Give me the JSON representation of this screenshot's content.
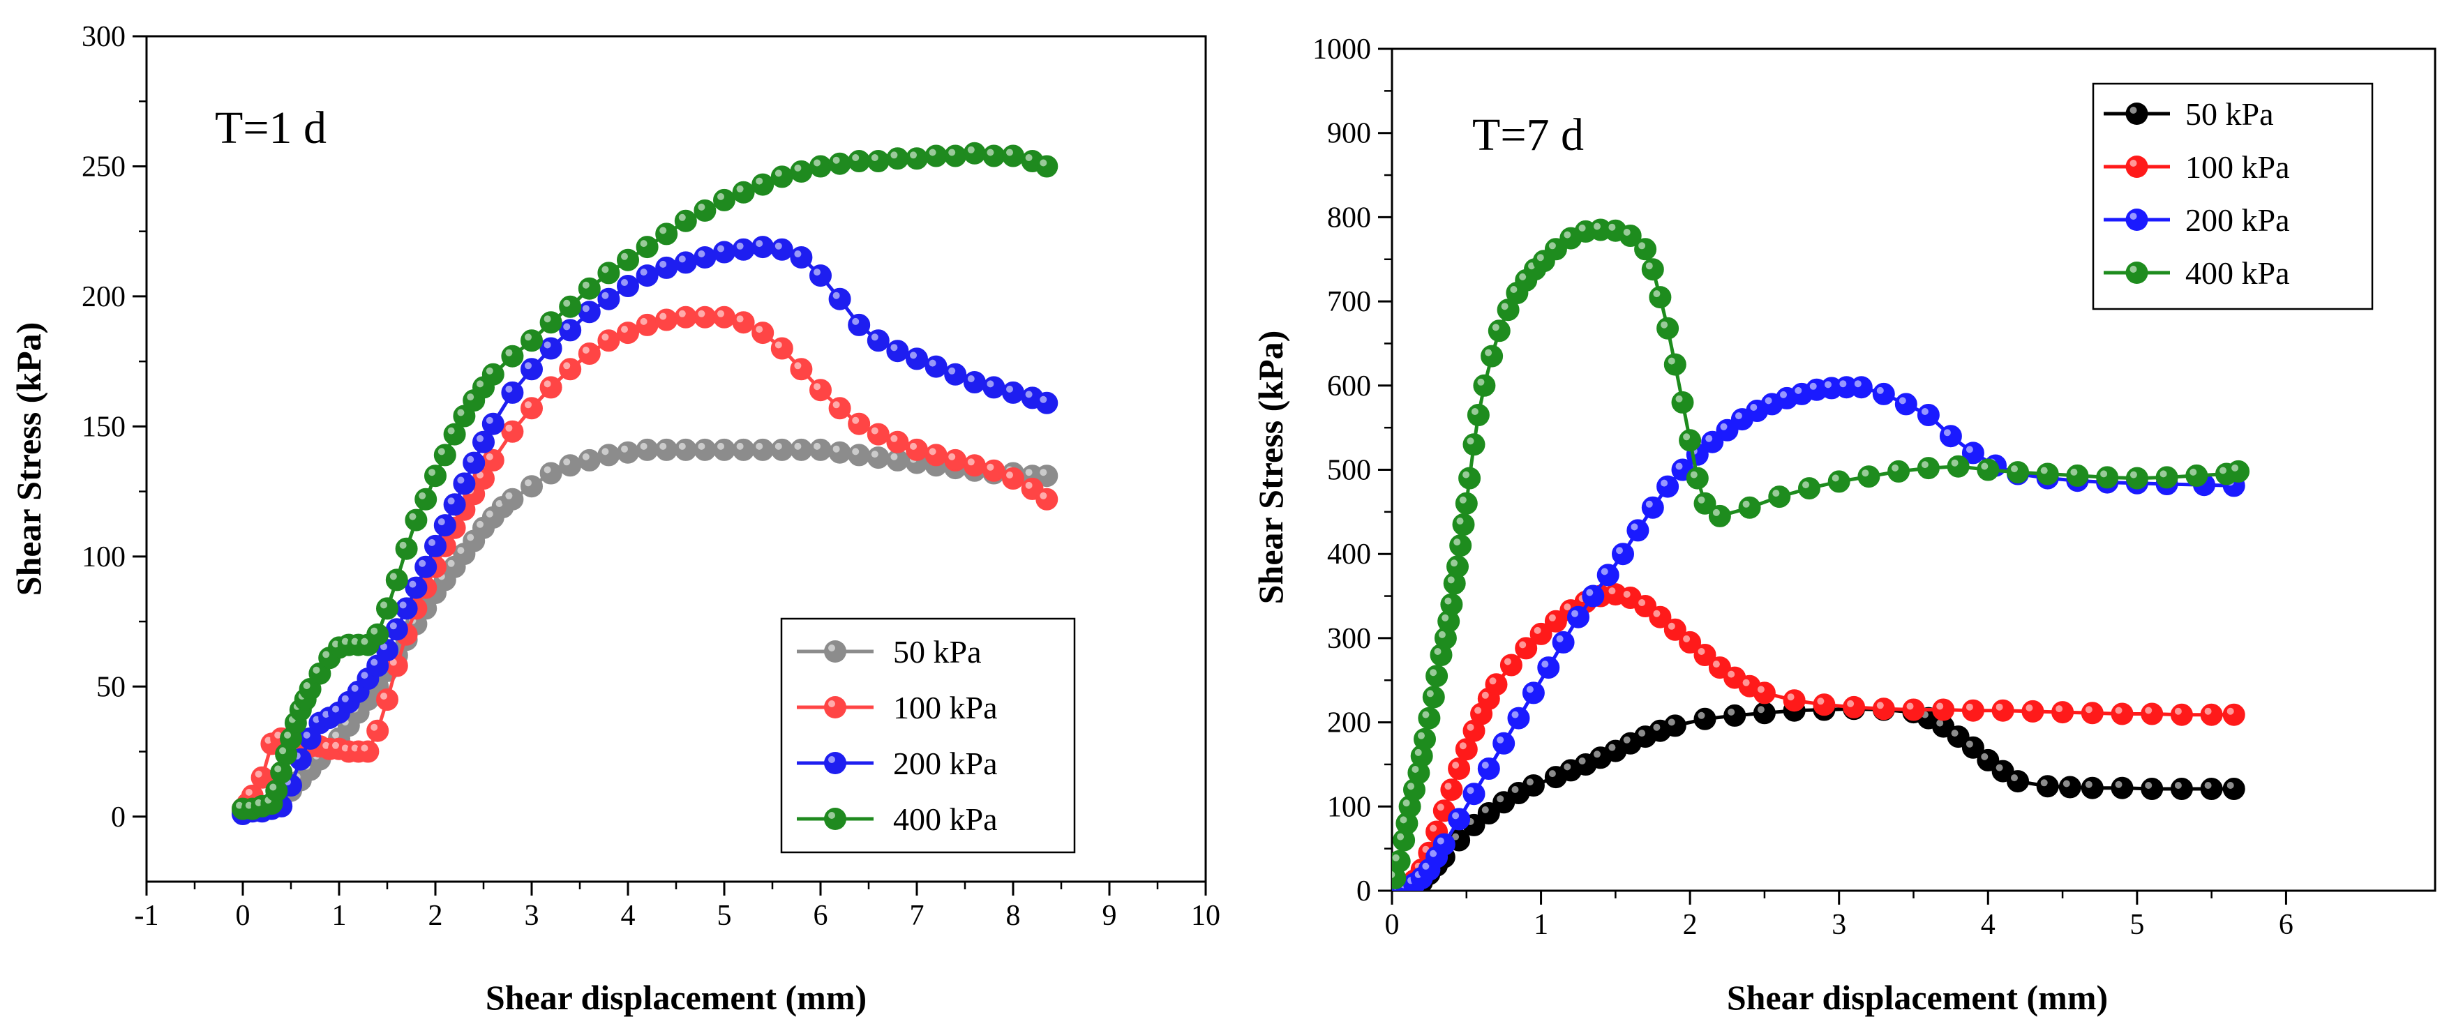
{
  "chart_data": [
    {
      "type": "line",
      "id": "left",
      "title": "T=1 d",
      "xlabel": "Shear displacement (mm)",
      "ylabel": "Shear Stress (kPa)",
      "xlim": [
        -1,
        10
      ],
      "ylim": [
        -25,
        300
      ],
      "xticks": [
        -1,
        0,
        1,
        2,
        3,
        4,
        5,
        6,
        7,
        8,
        9,
        10
      ],
      "yticks": [
        0,
        50,
        100,
        150,
        200,
        250,
        300
      ],
      "legend_position": "bottom-right",
      "series": [
        {
          "name": "50 kPa",
          "color": "#8c8c8c",
          "x": [
            0,
            0.1,
            0.2,
            0.3,
            0.4,
            0.5,
            0.6,
            0.7,
            0.8,
            0.9,
            1.0,
            1.1,
            1.2,
            1.3,
            1.4,
            1.5,
            1.6,
            1.7,
            1.8,
            1.9,
            2.0,
            2.1,
            2.2,
            2.3,
            2.4,
            2.5,
            2.6,
            2.7,
            2.8,
            3.0,
            3.2,
            3.4,
            3.6,
            3.8,
            4.0,
            4.2,
            4.4,
            4.6,
            4.8,
            5.0,
            5.2,
            5.4,
            5.6,
            5.8,
            6.0,
            6.2,
            6.4,
            6.6,
            6.8,
            7.0,
            7.2,
            7.4,
            7.6,
            7.8,
            8.0,
            8.2,
            8.35
          ],
          "y": [
            2,
            3,
            4,
            5,
            7,
            10,
            14,
            18,
            22,
            26,
            30,
            35,
            40,
            45,
            50,
            56,
            62,
            68,
            74,
            80,
            86,
            91,
            96,
            101,
            106,
            111,
            115,
            119,
            122,
            127,
            132,
            135,
            137,
            139,
            140,
            141,
            141,
            141,
            141,
            141,
            141,
            141,
            141,
            141,
            141,
            140,
            139,
            138,
            137,
            136,
            135,
            134,
            133,
            132,
            132,
            131,
            131
          ]
        },
        {
          "name": "100 kPa",
          "color": "#ff4545",
          "x": [
            0,
            0.05,
            0.1,
            0.2,
            0.3,
            0.4,
            0.5,
            0.6,
            0.7,
            0.8,
            0.9,
            1.0,
            1.1,
            1.2,
            1.3,
            1.4,
            1.5,
            1.6,
            1.7,
            1.8,
            1.9,
            2.0,
            2.1,
            2.2,
            2.3,
            2.4,
            2.5,
            2.6,
            2.8,
            3.0,
            3.2,
            3.4,
            3.6,
            3.8,
            4.0,
            4.2,
            4.4,
            4.6,
            4.8,
            5.0,
            5.2,
            5.4,
            5.6,
            5.8,
            6.0,
            6.2,
            6.4,
            6.6,
            6.8,
            7.0,
            7.2,
            7.4,
            7.6,
            7.8,
            8.0,
            8.2,
            8.35
          ],
          "y": [
            3,
            5,
            8,
            15,
            28,
            30,
            28,
            27,
            27,
            27,
            26,
            26,
            25,
            25,
            25,
            33,
            45,
            58,
            70,
            80,
            88,
            96,
            104,
            111,
            118,
            124,
            130,
            137,
            148,
            157,
            165,
            172,
            178,
            183,
            186,
            189,
            191,
            192,
            192,
            192,
            190,
            186,
            180,
            172,
            164,
            157,
            151,
            147,
            144,
            141,
            139,
            137,
            135,
            133,
            130,
            126,
            122
          ]
        },
        {
          "name": "200 kPa",
          "color": "#1e1ef0",
          "x": [
            0,
            0.1,
            0.2,
            0.3,
            0.4,
            0.5,
            0.6,
            0.7,
            0.8,
            0.9,
            1.0,
            1.1,
            1.2,
            1.3,
            1.4,
            1.5,
            1.6,
            1.7,
            1.8,
            1.9,
            2.0,
            2.1,
            2.2,
            2.3,
            2.4,
            2.5,
            2.6,
            2.8,
            3.0,
            3.2,
            3.4,
            3.6,
            3.8,
            4.0,
            4.2,
            4.4,
            4.6,
            4.8,
            5.0,
            5.2,
            5.4,
            5.6,
            5.8,
            6.0,
            6.2,
            6.4,
            6.6,
            6.8,
            7.0,
            7.2,
            7.4,
            7.6,
            7.8,
            8.0,
            8.2,
            8.35
          ],
          "y": [
            1,
            2,
            2,
            3,
            4,
            12,
            22,
            30,
            36,
            38,
            40,
            44,
            48,
            53,
            58,
            64,
            72,
            80,
            88,
            96,
            104,
            112,
            120,
            128,
            136,
            144,
            151,
            163,
            172,
            180,
            187,
            194,
            199,
            204,
            208,
            211,
            213,
            215,
            217,
            218,
            219,
            218,
            215,
            208,
            199,
            189,
            183,
            179,
            176,
            173,
            170,
            167,
            165,
            163,
            161,
            159
          ]
        },
        {
          "name": "400 kPa",
          "color": "#1f8a1f",
          "x": [
            0,
            0.1,
            0.2,
            0.3,
            0.35,
            0.4,
            0.45,
            0.5,
            0.55,
            0.6,
            0.65,
            0.7,
            0.8,
            0.9,
            1.0,
            1.1,
            1.2,
            1.3,
            1.4,
            1.5,
            1.6,
            1.7,
            1.8,
            1.9,
            2.0,
            2.1,
            2.2,
            2.3,
            2.4,
            2.5,
            2.6,
            2.8,
            3.0,
            3.2,
            3.4,
            3.6,
            3.8,
            4.0,
            4.2,
            4.4,
            4.6,
            4.8,
            5.0,
            5.2,
            5.4,
            5.6,
            5.8,
            6.0,
            6.2,
            6.4,
            6.6,
            6.8,
            7.0,
            7.2,
            7.4,
            7.6,
            7.8,
            8.0,
            8.2,
            8.35
          ],
          "y": [
            3,
            3,
            4,
            5,
            10,
            17,
            24,
            30,
            36,
            41,
            45,
            49,
            55,
            61,
            65,
            66,
            66,
            66,
            70,
            80,
            91,
            103,
            114,
            122,
            131,
            139,
            147,
            154,
            160,
            165,
            170,
            177,
            183,
            190,
            196,
            203,
            209,
            214,
            219,
            224,
            229,
            233,
            237,
            240,
            243,
            246,
            248,
            250,
            251,
            252,
            252,
            253,
            253,
            254,
            254,
            255,
            254,
            254,
            252,
            250
          ]
        }
      ]
    },
    {
      "type": "line",
      "id": "right",
      "title": "T=7 d",
      "xlabel": "Shear displacement (mm)",
      "ylabel": "Shear Stress (kPa)",
      "xlim": [
        0,
        7
      ],
      "ylim": [
        0,
        1000
      ],
      "xticks": [
        0,
        1,
        2,
        3,
        4,
        5,
        6
      ],
      "yticks": [
        0,
        100,
        200,
        300,
        400,
        500,
        600,
        700,
        800,
        900,
        1000
      ],
      "legend_position": "top-right",
      "series": [
        {
          "name": "50 kPa",
          "color": "#000000",
          "x": [
            0.1,
            0.15,
            0.2,
            0.25,
            0.3,
            0.35,
            0.45,
            0.55,
            0.65,
            0.75,
            0.85,
            0.95,
            1.1,
            1.2,
            1.3,
            1.4,
            1.5,
            1.6,
            1.7,
            1.8,
            1.9,
            2.1,
            2.3,
            2.5,
            2.7,
            2.9,
            3.1,
            3.3,
            3.5,
            3.6,
            3.7,
            3.8,
            3.9,
            4.0,
            4.1,
            4.2,
            4.4,
            4.55,
            4.7,
            4.9,
            5.1,
            5.3,
            5.5,
            5.65
          ],
          "y": [
            0,
            3,
            10,
            20,
            30,
            40,
            60,
            78,
            92,
            105,
            116,
            125,
            135,
            143,
            150,
            158,
            166,
            175,
            183,
            190,
            196,
            204,
            208,
            211,
            214,
            215,
            216,
            215,
            212,
            205,
            195,
            183,
            170,
            155,
            142,
            130,
            124,
            123,
            122,
            122,
            121,
            121,
            121,
            121
          ]
        },
        {
          "name": "100 kPa",
          "color": "#ff1a1a",
          "x": [
            0.05,
            0.1,
            0.15,
            0.2,
            0.25,
            0.3,
            0.35,
            0.4,
            0.45,
            0.5,
            0.55,
            0.6,
            0.65,
            0.7,
            0.8,
            0.9,
            1.0,
            1.1,
            1.2,
            1.3,
            1.4,
            1.5,
            1.6,
            1.7,
            1.8,
            1.9,
            2.0,
            2.1,
            2.2,
            2.3,
            2.4,
            2.5,
            2.7,
            2.9,
            3.1,
            3.3,
            3.5,
            3.7,
            3.9,
            4.1,
            4.3,
            4.5,
            4.7,
            4.9,
            5.1,
            5.3,
            5.5,
            5.65
          ],
          "y": [
            2,
            6,
            12,
            25,
            45,
            70,
            95,
            120,
            145,
            168,
            190,
            210,
            228,
            245,
            268,
            288,
            305,
            320,
            333,
            343,
            350,
            352,
            348,
            338,
            325,
            310,
            295,
            280,
            265,
            253,
            243,
            235,
            226,
            221,
            218,
            216,
            215,
            215,
            214,
            214,
            213,
            212,
            211,
            210,
            210,
            209,
            209,
            209
          ]
        },
        {
          "name": "200 kPa",
          "color": "#1a1aff",
          "x": [
            0.05,
            0.1,
            0.15,
            0.2,
            0.25,
            0.3,
            0.35,
            0.45,
            0.55,
            0.65,
            0.75,
            0.85,
            0.95,
            1.05,
            1.15,
            1.25,
            1.35,
            1.45,
            1.55,
            1.65,
            1.75,
            1.85,
            1.95,
            2.05,
            2.15,
            2.25,
            2.35,
            2.45,
            2.55,
            2.65,
            2.75,
            2.85,
            2.95,
            3.05,
            3.15,
            3.3,
            3.45,
            3.6,
            3.75,
            3.9,
            4.05,
            4.2,
            4.4,
            4.6,
            4.8,
            5.0,
            5.2,
            5.45,
            5.65
          ],
          "y": [
            1,
            3,
            8,
            15,
            25,
            40,
            55,
            85,
            115,
            145,
            175,
            205,
            235,
            265,
            295,
            325,
            350,
            375,
            400,
            428,
            455,
            480,
            500,
            518,
            533,
            547,
            560,
            570,
            578,
            585,
            590,
            595,
            597,
            598,
            598,
            590,
            578,
            565,
            540,
            520,
            505,
            495,
            490,
            487,
            485,
            484,
            483,
            482,
            481
          ]
        },
        {
          "name": "400 kPa",
          "color": "#1e8c1e",
          "x": [
            0.02,
            0.05,
            0.08,
            0.1,
            0.12,
            0.15,
            0.18,
            0.2,
            0.22,
            0.25,
            0.28,
            0.3,
            0.33,
            0.36,
            0.38,
            0.4,
            0.42,
            0.44,
            0.46,
            0.48,
            0.5,
            0.52,
            0.55,
            0.58,
            0.62,
            0.67,
            0.72,
            0.78,
            0.84,
            0.9,
            0.96,
            1.02,
            1.1,
            1.2,
            1.3,
            1.4,
            1.5,
            1.6,
            1.7,
            1.75,
            1.8,
            1.85,
            1.9,
            1.95,
            2.0,
            2.05,
            2.1,
            2.2,
            2.4,
            2.6,
            2.8,
            3.0,
            3.2,
            3.4,
            3.6,
            3.8,
            4.0,
            4.2,
            4.4,
            4.6,
            4.8,
            5.0,
            5.2,
            5.4,
            5.6,
            5.68
          ],
          "y": [
            15,
            35,
            60,
            80,
            100,
            120,
            140,
            160,
            180,
            205,
            230,
            255,
            280,
            300,
            320,
            340,
            365,
            385,
            410,
            435,
            460,
            490,
            530,
            565,
            600,
            635,
            665,
            690,
            710,
            725,
            738,
            748,
            762,
            775,
            783,
            785,
            784,
            778,
            762,
            738,
            705,
            668,
            625,
            580,
            535,
            490,
            460,
            445,
            455,
            468,
            478,
            486,
            492,
            498,
            502,
            504,
            500,
            497,
            495,
            493,
            491,
            490,
            491,
            493,
            495,
            498
          ]
        }
      ]
    }
  ]
}
